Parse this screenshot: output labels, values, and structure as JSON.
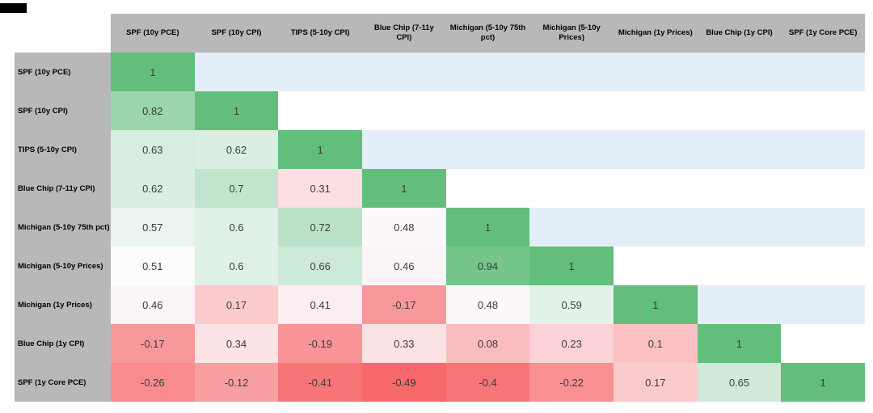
{
  "chart_data": {
    "type": "heatmap",
    "subtype": "correlation-matrix-lower-triangular",
    "title": "",
    "columns": [
      "SPF (10y PCE)",
      "SPF (10y CPI)",
      "TIPS (5-10y CPI)",
      "Blue Chip (7-11y CPI)",
      "Michigan (5-10y 75th pct)",
      "Michigan (5-10y Prices)",
      "Michigan (1y Prices)",
      "Blue Chip (1y CPI)",
      "SPF (1y Core PCE)"
    ],
    "rows": [
      "SPF (10y PCE)",
      "SPF (10y CPI)",
      "TIPS  (5-10y CPI)",
      "Blue Chip (7-11y CPI)",
      "Michigan (5-10y 75th pct)",
      "Michigan (5-10y Prices)",
      "Michigan (1y Prices)",
      "Blue Chip (1y CPI)",
      "SPF (1y Core PCE)"
    ],
    "values": [
      [
        1
      ],
      [
        0.82,
        1
      ],
      [
        0.63,
        0.62,
        1
      ],
      [
        0.62,
        0.7,
        0.31,
        1
      ],
      [
        0.57,
        0.6,
        0.72,
        0.48,
        1
      ],
      [
        0.51,
        0.6,
        0.66,
        0.46,
        0.94,
        1
      ],
      [
        0.46,
        0.17,
        0.41,
        -0.17,
        0.48,
        0.59,
        1
      ],
      [
        -0.17,
        0.34,
        -0.19,
        0.33,
        0.08,
        0.23,
        0.1,
        1
      ],
      [
        -0.26,
        -0.12,
        -0.41,
        -0.49,
        -0.4,
        -0.22,
        0.17,
        0.65,
        1
      ]
    ],
    "color_scale": {
      "min_value": -0.49,
      "min_color": "#f8696b",
      "mid_value": 0.51,
      "mid_color": "#fcfcff",
      "max_value": 1,
      "max_color": "#63be7b"
    },
    "upper_triangle_row_colors": {
      "odd": "#e3eef9",
      "even": "#ffffff"
    },
    "legend_position": "none",
    "grid": false
  },
  "styles": {
    "header_bg": "#b8b8b8",
    "label_text_color": "#000000",
    "value_text_color": "#3c3c3c",
    "page_bg": "#ffffff",
    "corner_mark_color": "#000000"
  }
}
